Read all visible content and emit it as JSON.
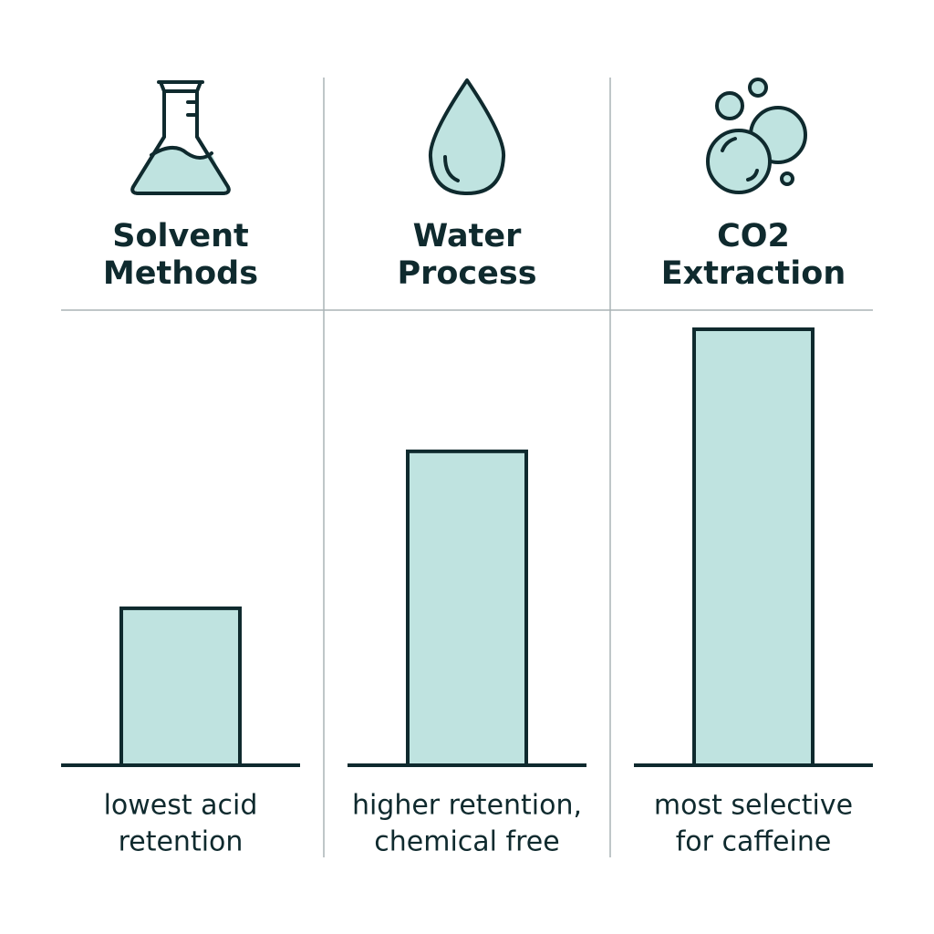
{
  "chart_data": {
    "type": "bar",
    "categories": [
      [
        "Solvent",
        "Methods"
      ],
      [
        "Water",
        "Process"
      ],
      [
        "CO2",
        "Extraction"
      ]
    ],
    "values": [
      36,
      72,
      100
    ],
    "annotations": [
      [
        "lowest acid",
        "retention"
      ],
      [
        "higher retention,",
        "chemical free"
      ],
      [
        "most selective",
        "for caffeine"
      ]
    ],
    "color": "#bfe3e0",
    "ylim": [
      0,
      100
    ]
  }
}
